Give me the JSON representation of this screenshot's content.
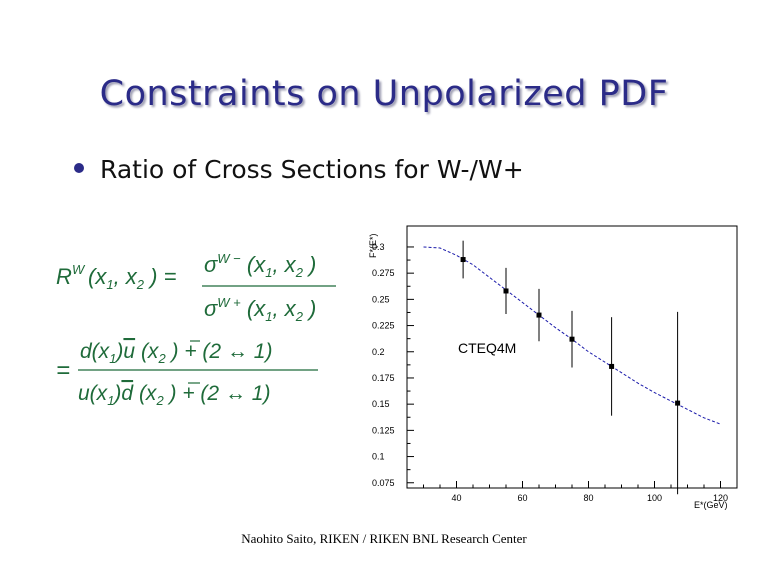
{
  "slide": {
    "title": "Constraints on Unpolarized PDF",
    "bullet": "Ratio of Cross Sections for W-/W+",
    "footer": "Naohito Saito, RIKEN / RIKEN BNL Research Center"
  },
  "colors": {
    "title": "#2b2b88",
    "equation": "#1f6b3a",
    "curve": "#1a1aaa"
  },
  "chart_data": {
    "type": "scatter",
    "xlabel": "E*(GeV)",
    "ylabel": "F*(E*)",
    "xlim": [
      25,
      125
    ],
    "ylim": [
      0.07,
      0.32
    ],
    "x_ticks": [
      40,
      60,
      80,
      100,
      120
    ],
    "y_ticks": [
      0.075,
      0.1,
      0.125,
      0.15,
      0.175,
      0.2,
      0.225,
      0.25,
      0.275,
      0.3
    ],
    "y_tick_labels": [
      "0.075",
      "0.1",
      "0.125",
      "0.15",
      "0.175",
      "0.2",
      "0.225",
      "0.25",
      "0.275",
      "0.3"
    ],
    "annotation": "CTEQ4M",
    "points": [
      {
        "x": 42,
        "y": 0.288,
        "err": 0.018
      },
      {
        "x": 55,
        "y": 0.258,
        "err": 0.022
      },
      {
        "x": 65,
        "y": 0.235,
        "err": 0.025
      },
      {
        "x": 75,
        "y": 0.212,
        "err": 0.027
      },
      {
        "x": 87,
        "y": 0.186,
        "err": 0.047
      },
      {
        "x": 107,
        "y": 0.151,
        "err": 0.087
      }
    ],
    "curve": {
      "x": [
        30,
        35,
        40,
        45,
        50,
        55,
        60,
        65,
        70,
        75,
        80,
        85,
        90,
        95,
        100,
        105,
        110,
        115,
        120
      ],
      "y": [
        0.3,
        0.299,
        0.292,
        0.283,
        0.271,
        0.259,
        0.247,
        0.235,
        0.223,
        0.212,
        0.2,
        0.19,
        0.18,
        0.17,
        0.161,
        0.153,
        0.145,
        0.137,
        0.131
      ]
    }
  }
}
